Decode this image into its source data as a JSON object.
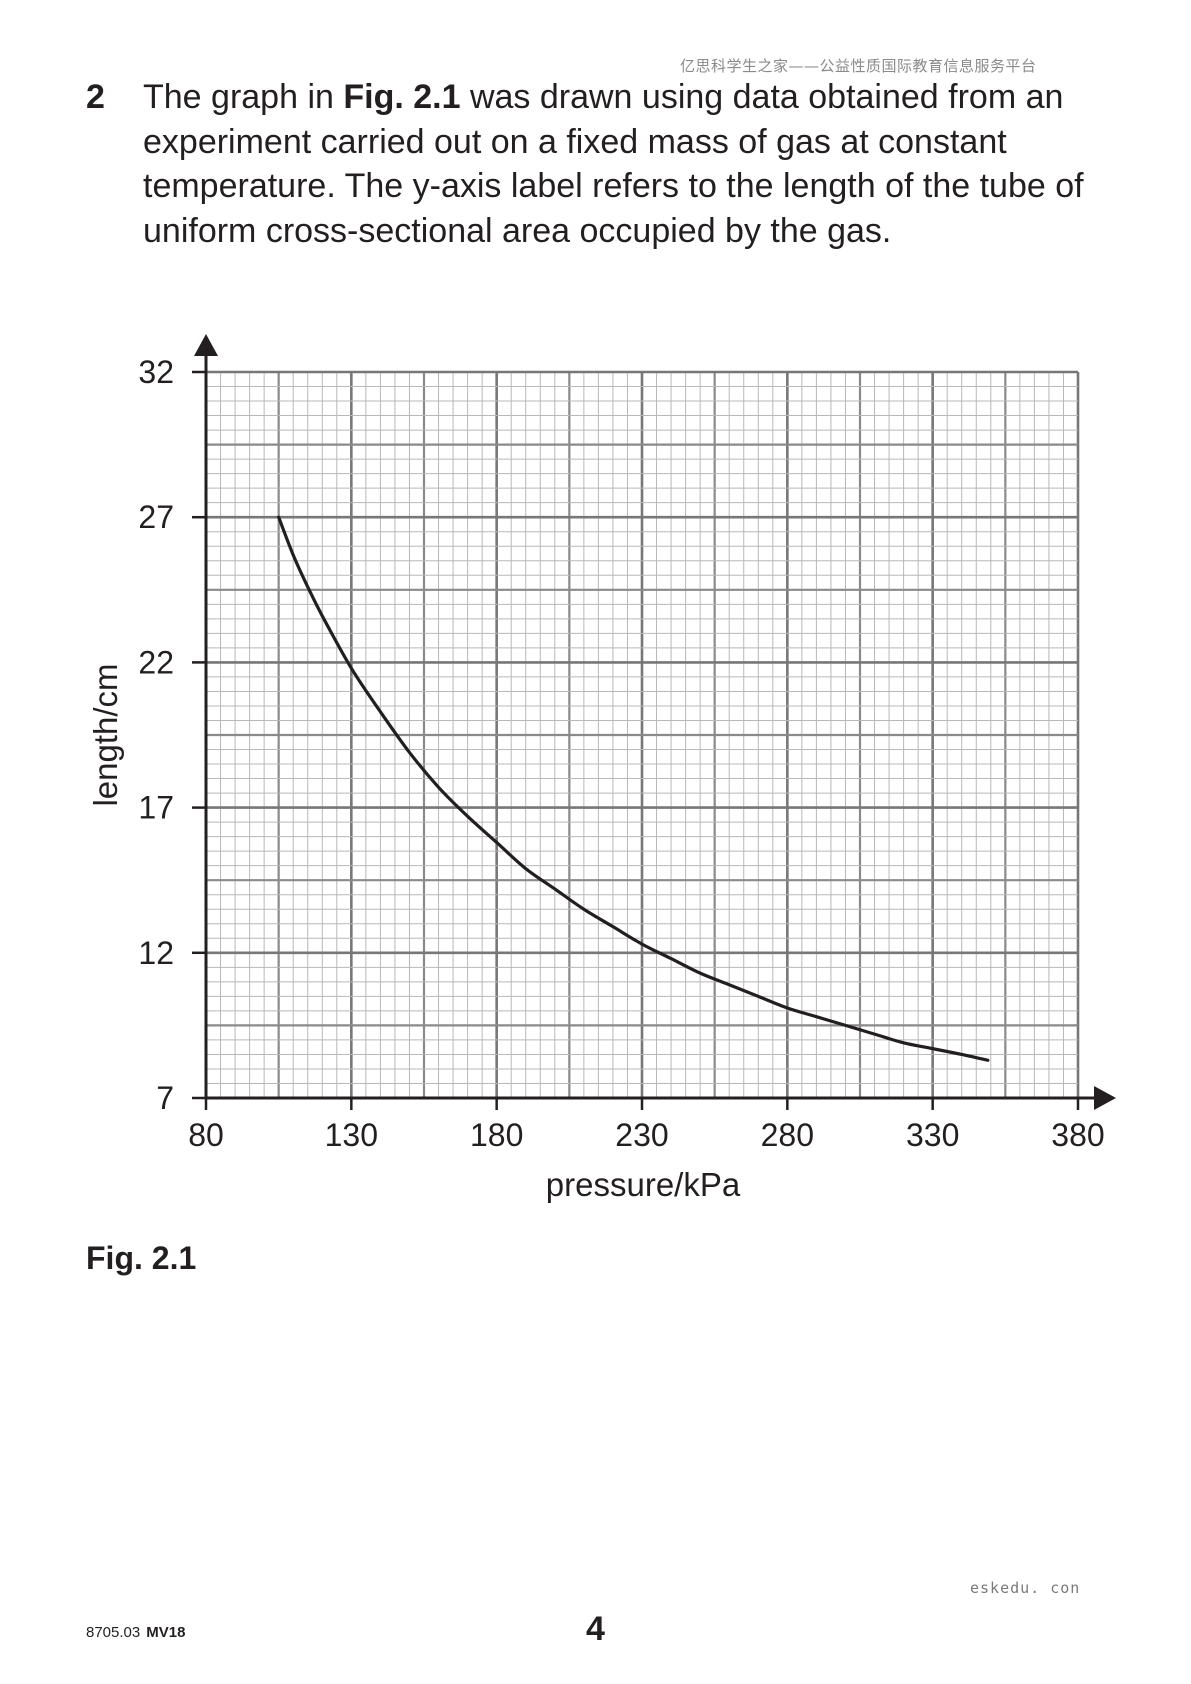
{
  "header": {
    "watermark": "亿思科学生之家——公益性质国际教育信息服务平台"
  },
  "question": {
    "number": "2",
    "text_before": "The graph in ",
    "fig_ref": "Fig. 2.1",
    "text_after": " was drawn using data obtained from an experiment carried out on a fixed mass of gas at constant temperature. The y-axis label refers to the length of the tube of uniform cross-sectional area occupied by the gas."
  },
  "chart_data": {
    "type": "line",
    "title": "",
    "xlabel": "pressure/kPa",
    "ylabel": "length/cm",
    "xlim": [
      80,
      380
    ],
    "ylim": [
      7,
      32
    ],
    "xticks": [
      80,
      130,
      180,
      230,
      280,
      330,
      380
    ],
    "yticks": [
      7,
      12,
      17,
      22,
      27,
      32
    ],
    "x_minor_step": 5,
    "y_minor_step": 0.5,
    "grid": true,
    "series": [
      {
        "x": [
          105,
          110,
          115,
          120,
          130,
          140,
          150,
          160,
          170,
          180,
          190,
          200,
          210,
          220,
          230,
          240,
          250,
          260,
          270,
          280,
          290,
          300,
          310,
          320,
          330,
          340,
          349
        ],
        "y": [
          27.0,
          25.7,
          24.6,
          23.6,
          21.8,
          20.3,
          18.9,
          17.7,
          16.7,
          15.8,
          14.9,
          14.2,
          13.5,
          12.9,
          12.3,
          11.8,
          11.3,
          10.9,
          10.5,
          10.1,
          9.8,
          9.5,
          9.2,
          8.9,
          8.7,
          8.5,
          8.3
        ]
      }
    ]
  },
  "figure": {
    "caption": "Fig. 2.1"
  },
  "footer": {
    "watermark": "eskedu. con",
    "code": "8705.03",
    "version": "MV18",
    "page_number": "4"
  }
}
